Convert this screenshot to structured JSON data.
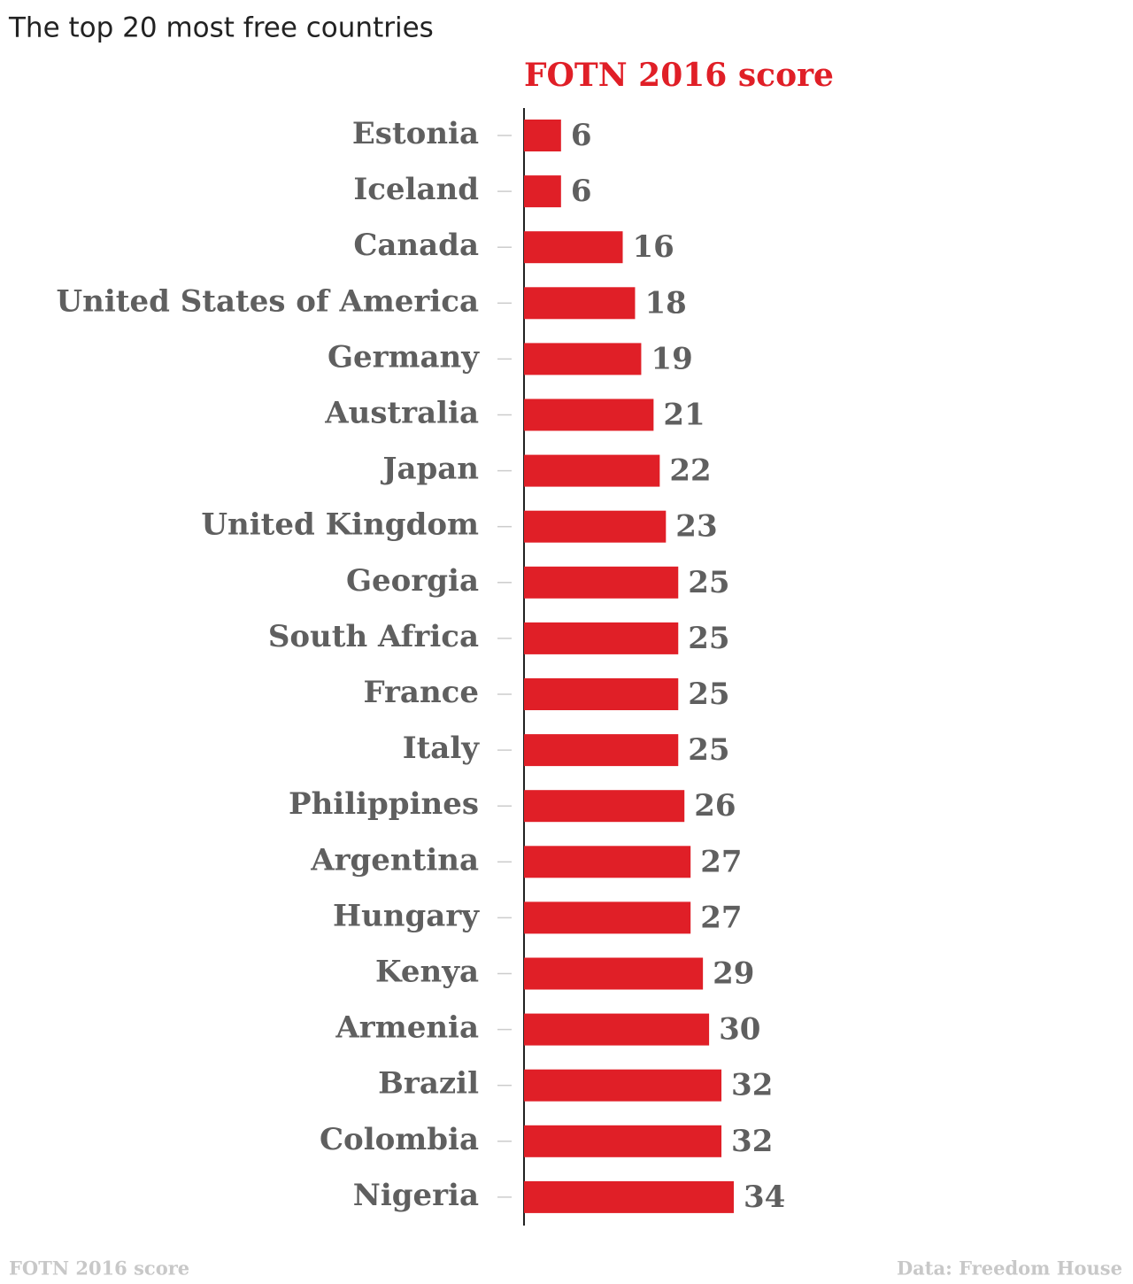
{
  "chart_data": {
    "type": "bar",
    "orientation": "horizontal",
    "title": "The top 20 most free countries",
    "source": "Data: Freedom House",
    "categories": [
      "Estonia",
      "Iceland",
      "Canada",
      "United States of America",
      "Germany",
      "Australia",
      "Japan",
      "United Kingdom",
      "Georgia",
      "South Africa",
      "France",
      "Italy",
      "Philippines",
      "Argentina",
      "Hungary",
      "Kenya",
      "Armenia",
      "Brazil",
      "Colombia",
      "Nigeria"
    ],
    "series": [
      {
        "name": "FOTN 2016 score",
        "color": "#e01f27",
        "values": [
          6,
          6,
          16,
          18,
          19,
          21,
          22,
          23,
          25,
          25,
          25,
          25,
          26,
          27,
          27,
          29,
          30,
          32,
          32,
          34
        ]
      }
    ]
  }
}
